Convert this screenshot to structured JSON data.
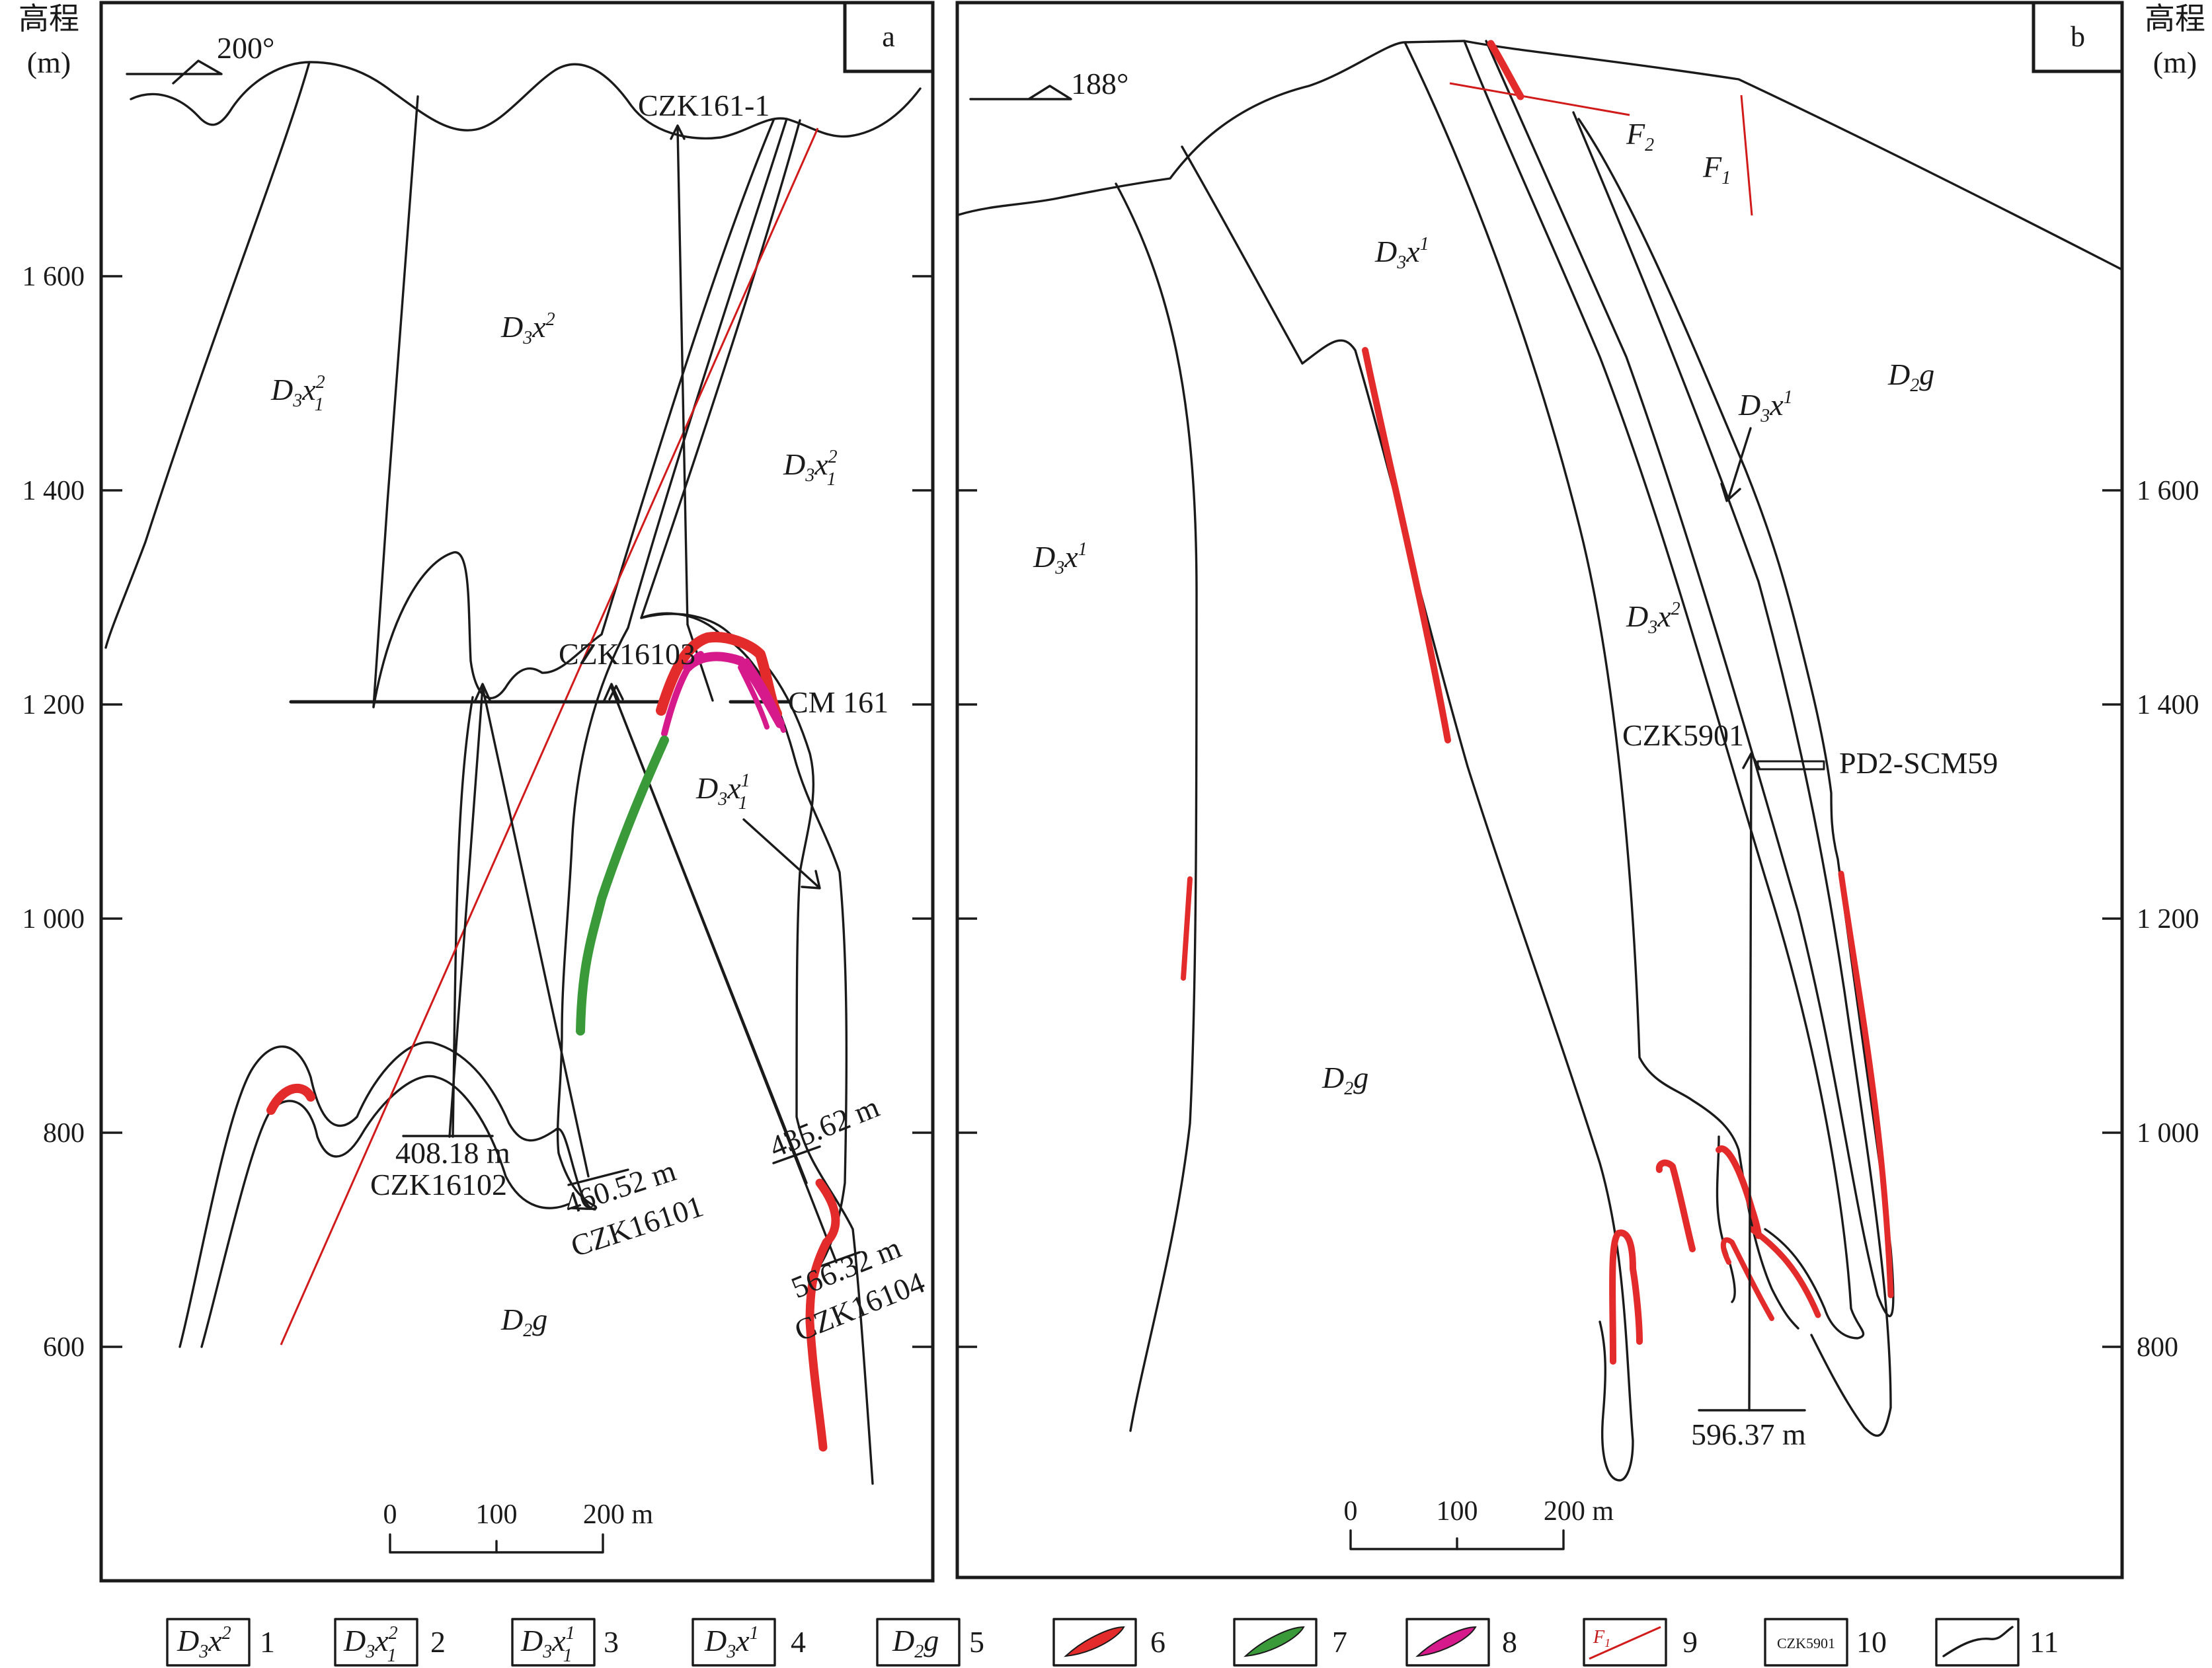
{
  "panels": [
    {
      "id": "a",
      "letter": "a",
      "azimuth": "200°",
      "y_title": "高程",
      "y_unit": "(m)",
      "y_ticks": [
        "1 600",
        "1 400",
        "1 200",
        "1 000",
        "800",
        "600"
      ],
      "units": {
        "D3x2": {
          "base": "D",
          "sub": "3",
          "sym": "x",
          "sup": "2",
          "lower": ""
        },
        "D3x12_left": {
          "base": "D",
          "sub": "3",
          "sym": "x",
          "sup": "2",
          "lower": "1"
        },
        "D3x12_right": {
          "base": "D",
          "sub": "3",
          "sym": "x",
          "sup": "2",
          "lower": "1"
        },
        "D3x11": {
          "base": "D",
          "sub": "3",
          "sym": "x",
          "sup": "1",
          "lower": "1"
        },
        "D2g": {
          "base": "D",
          "sub": "2",
          "sym": "g"
        }
      },
      "boreholes": {
        "czk161_1": "CZK161-1",
        "czk16103": "CZK16103",
        "cm161": "CM 161",
        "czk16102": "CZK16102",
        "czk16101": "CZK16101",
        "czk16104": "CZK16104"
      },
      "depths": {
        "d16102": "408.18 m",
        "d16101": "460.52 m",
        "d43562": "435.62 m",
        "d56632": "566.32 m"
      },
      "scale": {
        "zero": "0",
        "mid": "100",
        "end": "200 m"
      }
    },
    {
      "id": "b",
      "letter": "b",
      "azimuth": "188°",
      "y_title": "高程",
      "y_unit": "(m)",
      "y_ticks": [
        "1 600",
        "1 400",
        "1 200",
        "1 000",
        "800"
      ],
      "units": {
        "D3x1_top": {
          "base": "D",
          "sub": "3",
          "sym": "x",
          "sup": "1"
        },
        "D3x1_left": {
          "base": "D",
          "sub": "3",
          "sym": "x",
          "sup": "1"
        },
        "D3x1_right": {
          "base": "D",
          "sub": "3",
          "sym": "x",
          "sup": "1"
        },
        "D3x2": {
          "base": "D",
          "sub": "3",
          "sym": "x",
          "sup": "2"
        },
        "D2g_top": {
          "base": "D",
          "sub": "2",
          "sym": "g"
        },
        "D2g_bottom": {
          "base": "D",
          "sub": "2",
          "sym": "g"
        }
      },
      "faults": {
        "f2": {
          "sym": "F",
          "sub": "2"
        },
        "f1": {
          "sym": "F",
          "sub": "1"
        }
      },
      "boreholes": {
        "czk5901": "CZK5901",
        "pd2": "PD2-SCM59"
      },
      "depths": {
        "d59637": "596.37 m"
      },
      "scale": {
        "zero": "0",
        "mid": "100",
        "end": "200 m"
      }
    }
  ],
  "legend": [
    {
      "num": "1",
      "kind": "box",
      "text": {
        "base": "D",
        "sub": "3",
        "sym": "x",
        "sup": "2",
        "lower": ""
      }
    },
    {
      "num": "2",
      "kind": "box",
      "text": {
        "base": "D",
        "sub": "3",
        "sym": "x",
        "sup": "2",
        "lower": "1"
      }
    },
    {
      "num": "3",
      "kind": "box",
      "text": {
        "base": "D",
        "sub": "3",
        "sym": "x",
        "sup": "1",
        "lower": "1"
      }
    },
    {
      "num": "4",
      "kind": "box",
      "text": {
        "base": "D",
        "sub": "3",
        "sym": "x",
        "sup": "1",
        "lower": ""
      }
    },
    {
      "num": "5",
      "kind": "box",
      "text": {
        "base": "D",
        "sub": "2",
        "sym": "g",
        "sup": "",
        "lower": ""
      }
    },
    {
      "num": "6",
      "kind": "swatch",
      "color": "#e32b2b"
    },
    {
      "num": "7",
      "kind": "swatch",
      "color": "#3a9a3a"
    },
    {
      "num": "8",
      "kind": "swatch",
      "color": "#d61a8c"
    },
    {
      "num": "9",
      "kind": "fault",
      "label": {
        "sym": "F",
        "sub": "1"
      },
      "color": "#d11a1a"
    },
    {
      "num": "10",
      "kind": "tag",
      "label": "CZK5901"
    },
    {
      "num": "11",
      "kind": "curve"
    }
  ]
}
